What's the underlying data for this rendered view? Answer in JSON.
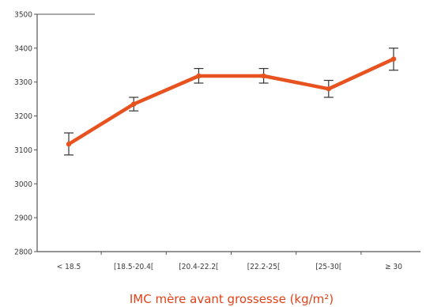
{
  "colors": {
    "series": "#e8521f",
    "axis": "#555555",
    "xlabel": "#e0431a"
  },
  "chart_data": {
    "type": "line",
    "title": "",
    "xlabel": "IMC mère avant grossesse (kg/m²)",
    "ylabel": "",
    "categories": [
      "< 18.5",
      "[18.5-20.4[",
      "[20.4-22.2[",
      "[22.2-25[",
      "[25-30[",
      "≥ 30"
    ],
    "yticks": [
      2800,
      2900,
      3000,
      3100,
      3200,
      3300,
      3400,
      3500
    ],
    "ylim": [
      2800,
      3500
    ],
    "grid": false,
    "series": [
      {
        "values": [
          3117,
          3235,
          3318,
          3318,
          3280,
          3368
        ],
        "error_low": [
          3085,
          3215,
          3297,
          3297,
          3255,
          3335
        ],
        "error_high": [
          3150,
          3255,
          3340,
          3340,
          3305,
          3400
        ]
      }
    ]
  }
}
